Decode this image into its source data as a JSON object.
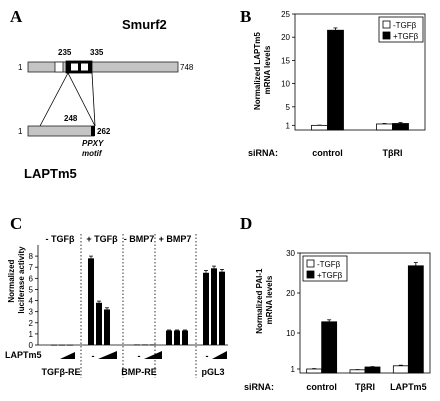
{
  "panels": {
    "A": {
      "label": "A",
      "smurf2": {
        "name": "Smurf2",
        "start": "1",
        "end": "748",
        "left_pos": "235",
        "right_pos": "335"
      },
      "laptm5": {
        "name": "LAPTm5",
        "start": "1",
        "site": "248",
        "end": "262",
        "motif": "PPXY\nmotif"
      }
    },
    "B": {
      "label": "B",
      "ylabel_lines": [
        "Normalized LAPTm5",
        "mRNA levels"
      ],
      "xrow_label": "siRNA:"
    },
    "C": {
      "label": "C",
      "ylabel_lines": [
        "Normalized",
        "luciferase activity"
      ],
      "treatments": [
        "- TGFβ",
        "+ TGFβ",
        "- BMP7",
        "+ BMP7"
      ],
      "laptm5_label": "LAPTm5",
      "reporters": [
        "TGFβ-RE",
        "BMP-RE",
        "pGL3"
      ]
    },
    "D": {
      "label": "D",
      "ylabel_lines": [
        "Normalized PAI-1",
        "mRNA levels"
      ],
      "xrow_label": "siRNA:"
    }
  },
  "chart_data": [
    {
      "type": "bar",
      "panel": "B",
      "categories": [
        "control",
        "TβRI"
      ],
      "series": [
        {
          "name": "-TGFβ",
          "values": [
            1.0,
            1.3
          ],
          "errors": [
            0.05,
            0.1
          ],
          "color": "#ffffff"
        },
        {
          "name": "+TGFβ",
          "values": [
            21.5,
            1.4
          ],
          "errors": [
            0.5,
            0.2
          ],
          "color": "#000000"
        }
      ],
      "ylim": [
        0,
        25
      ],
      "yticks": [
        1,
        5,
        10,
        15,
        20,
        25
      ],
      "legend": "top-right"
    },
    {
      "type": "bar",
      "panel": "C",
      "groups": [
        {
          "values": [
            0.02,
            0.02,
            0.02
          ],
          "errors": [
            0,
            0,
            0
          ]
        },
        {
          "values": [
            7.8,
            3.8,
            3.2
          ],
          "errors": [
            0.2,
            0.15,
            0.15
          ]
        },
        {
          "values": [
            0.05,
            0.05,
            0.05
          ],
          "errors": [
            0,
            0,
            0
          ]
        },
        {
          "values": [
            1.3,
            1.3,
            1.3
          ],
          "errors": [
            0.05,
            0.05,
            0.05
          ]
        },
        {
          "values": [
            6.5,
            6.9,
            6.6
          ],
          "errors": [
            0.2,
            0.2,
            0.2
          ]
        }
      ],
      "minus_labels": [
        "-",
        "-",
        "-"
      ],
      "ylim": [
        0,
        9
      ],
      "yticks": [
        0,
        1,
        2,
        3,
        4,
        5,
        6,
        7,
        8
      ]
    },
    {
      "type": "bar",
      "panel": "D",
      "categories": [
        "control",
        "TβRI",
        "LAPTm5"
      ],
      "series": [
        {
          "name": "-TGFβ",
          "values": [
            1.0,
            0.8,
            1.8
          ],
          "errors": [
            0.1,
            0.05,
            0.15
          ],
          "color": "#ffffff"
        },
        {
          "name": "+TGFβ",
          "values": [
            12.8,
            1.5,
            26.8
          ],
          "errors": [
            0.5,
            0.1,
            0.8
          ],
          "color": "#000000"
        }
      ],
      "ylim": [
        0,
        30
      ],
      "yticks": [
        1,
        10,
        20,
        30
      ],
      "legend": "top-left"
    }
  ]
}
